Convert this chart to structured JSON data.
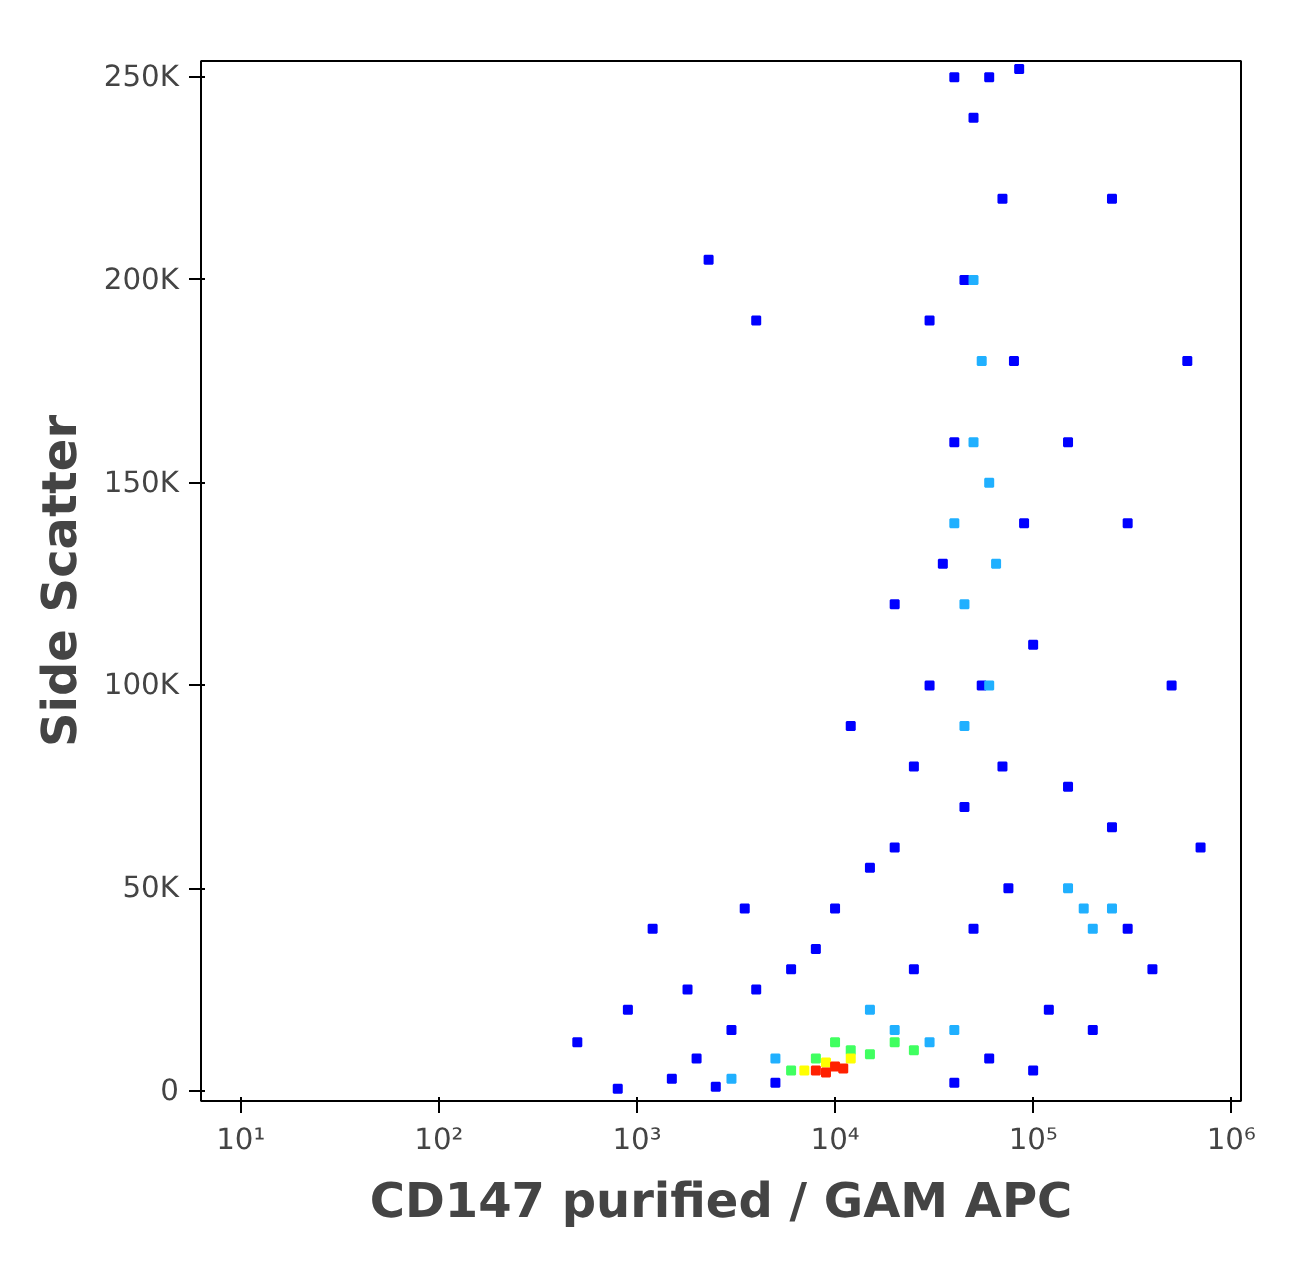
{
  "chart_data": {
    "type": "scatter",
    "xlabel": "CD147 purified / GAM APC",
    "ylabel": "Side Scatter",
    "log": "x",
    "marker": "square",
    "xlim": [
      6.3,
      1120000
    ],
    "ylim": [
      -2500,
      254000
    ],
    "xticks": [
      {
        "value": 10,
        "label": "10¹"
      },
      {
        "value": 100,
        "label": "10²"
      },
      {
        "value": 1000,
        "label": "10³"
      },
      {
        "value": 10000,
        "label": "10⁴"
      },
      {
        "value": 100000,
        "label": "10⁵"
      },
      {
        "value": 1000000,
        "label": "10⁶"
      }
    ],
    "yticks": [
      {
        "value": 0,
        "label": "0"
      },
      {
        "value": 50000,
        "label": "50K"
      },
      {
        "value": 100000,
        "label": "100K"
      },
      {
        "value": 150000,
        "label": "150K"
      },
      {
        "value": 200000,
        "label": "200K"
      },
      {
        "value": 250000,
        "label": "250K"
      }
    ],
    "series": [
      {
        "color": "#0000ff",
        "x": [
          500,
          900,
          1500,
          2000,
          2500,
          3000,
          4000,
          5000,
          6000,
          1200,
          8000,
          10000,
          15000,
          20000,
          25000,
          30000,
          35000,
          40000,
          45000,
          50000,
          60000,
          70000,
          80000,
          90000,
          100000,
          30000,
          40000,
          55000,
          70000,
          45000,
          120000,
          150000,
          250000,
          300000,
          400000,
          200000,
          500000,
          600000,
          300000,
          150000,
          20000,
          12000,
          250000,
          700000,
          100000,
          60000,
          40000,
          800,
          1800,
          3500,
          25000,
          50000,
          75000,
          85000,
          2300,
          4000
        ],
        "values": [
          12000,
          20000,
          3000,
          8000,
          1000,
          15000,
          25000,
          2000,
          30000,
          40000,
          35000,
          45000,
          55000,
          60000,
          80000,
          100000,
          130000,
          160000,
          200000,
          240000,
          250000,
          220000,
          180000,
          140000,
          110000,
          190000,
          250000,
          100000,
          80000,
          70000,
          20000,
          75000,
          65000,
          40000,
          30000,
          15000,
          100000,
          180000,
          140000,
          160000,
          120000,
          90000,
          220000,
          60000,
          5000,
          8000,
          2000,
          500,
          25000,
          45000,
          30000,
          40000,
          50000,
          252000,
          205000,
          190000
        ]
      },
      {
        "color": "#20b0ff",
        "x": [
          40000,
          50000,
          60000,
          55000,
          45000,
          65000,
          50000,
          180000,
          200000,
          150000,
          250000,
          20000,
          30000,
          15000,
          40000,
          3000,
          5000,
          60000,
          45000
        ],
        "values": [
          140000,
          160000,
          150000,
          180000,
          120000,
          130000,
          200000,
          45000,
          40000,
          50000,
          45000,
          15000,
          12000,
          20000,
          15000,
          3000,
          8000,
          100000,
          90000
        ]
      },
      {
        "color": "#40ff60",
        "x": [
          8000,
          12000,
          15000,
          6000,
          20000,
          25000,
          10000
        ],
        "values": [
          8000,
          10000,
          9000,
          5000,
          12000,
          10000,
          12000
        ]
      },
      {
        "color": "#ffff00",
        "x": [
          9000,
          12000,
          7000
        ],
        "values": [
          7000,
          8000,
          5000
        ]
      },
      {
        "color": "#ff2000",
        "x": [
          8000,
          10000,
          9000,
          11000
        ],
        "values": [
          5000,
          6000,
          4500,
          5500
        ]
      }
    ]
  }
}
